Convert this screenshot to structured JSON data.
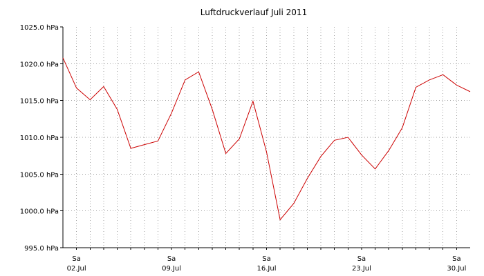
{
  "chart_data": {
    "type": "line",
    "title": "Luftdruckverlauf Juli 2011",
    "xlabel": "",
    "ylabel": "",
    "unit": "hPa",
    "ylim": [
      995,
      1025
    ],
    "xlim": [
      "2011-07-01",
      "2011-07-31"
    ],
    "y_ticks": [
      995,
      1000,
      1005,
      1010,
      1015,
      1020,
      1025
    ],
    "y_tick_labels": [
      "995.0 hPa",
      "1000.0 hPa",
      "1005.0 hPa",
      "1010.0 hPa",
      "1015.0 hPa",
      "1020.0 hPa",
      "1025.0 hPa"
    ],
    "x_weekday_ticks": [
      {
        "date": "2011-07-02",
        "label": "Sa"
      },
      {
        "date": "2011-07-09",
        "label": "Sa"
      },
      {
        "date": "2011-07-16",
        "label": "Sa"
      },
      {
        "date": "2011-07-23",
        "label": "Sa"
      },
      {
        "date": "2011-07-30",
        "label": "Sa"
      }
    ],
    "x_date_ticks": [
      {
        "date": "2011-07-02",
        "label": "02.Jul"
      },
      {
        "date": "2011-07-09",
        "label": "09.Jul"
      },
      {
        "date": "2011-07-16",
        "label": "16.Jul"
      },
      {
        "date": "2011-07-23",
        "label": "23.Jul"
      },
      {
        "date": "2011-07-30",
        "label": "30.Jul"
      }
    ],
    "grid": true,
    "series": [
      {
        "color": "#cc0000",
        "x": [
          "2011-07-01",
          "2011-07-02",
          "2011-07-03",
          "2011-07-04",
          "2011-07-05",
          "2011-07-06",
          "2011-07-07",
          "2011-07-08",
          "2011-07-09",
          "2011-07-10",
          "2011-07-11",
          "2011-07-12",
          "2011-07-13",
          "2011-07-14",
          "2011-07-15",
          "2011-07-16",
          "2011-07-17",
          "2011-07-18",
          "2011-07-19",
          "2011-07-20",
          "2011-07-21",
          "2011-07-22",
          "2011-07-23",
          "2011-07-24",
          "2011-07-25",
          "2011-07-26",
          "2011-07-27",
          "2011-07-28",
          "2011-07-29",
          "2011-07-30",
          "2011-07-31"
        ],
        "values": [
          1020.8,
          1016.7,
          1015.1,
          1016.9,
          1013.8,
          1008.5,
          1009.0,
          1009.5,
          1013.3,
          1017.8,
          1018.9,
          1013.8,
          1007.8,
          1009.8,
          1014.9,
          1008.0,
          998.8,
          1001.0,
          1004.4,
          1007.4,
          1009.6,
          1010.0,
          1007.6,
          1005.7,
          1008.2,
          1011.3,
          1016.8,
          1017.8,
          1018.5,
          1017.1,
          1016.2
        ]
      }
    ]
  }
}
